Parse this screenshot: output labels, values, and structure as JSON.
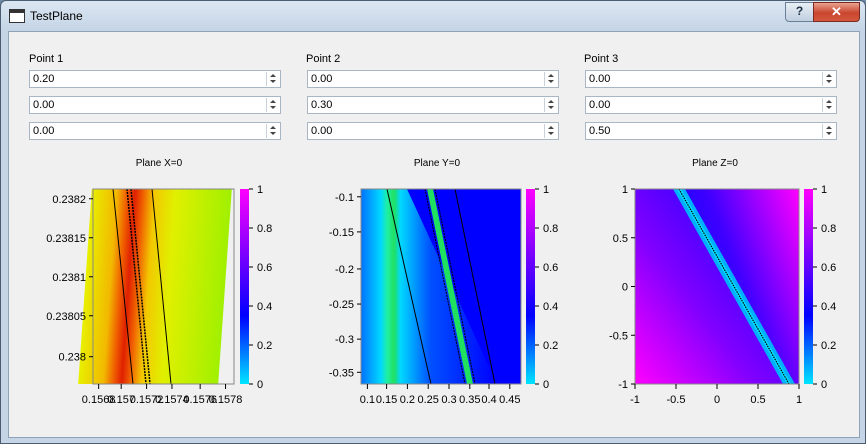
{
  "window": {
    "title": "TestPlane",
    "help": "?",
    "close": "✕"
  },
  "points": [
    {
      "label": "Point 1",
      "values": [
        "0.20",
        "0.00",
        "0.00"
      ]
    },
    {
      "label": "Point 2",
      "values": [
        "0.00",
        "0.30",
        "0.00"
      ]
    },
    {
      "label": "Point 3",
      "values": [
        "0.00",
        "0.00",
        "0.50"
      ]
    }
  ],
  "colorbar": {
    "ticks": [
      "0",
      "0.2",
      "0.4",
      "0.6",
      "0.8",
      "1"
    ],
    "colors": [
      "#00e5ff",
      "#0000ff",
      "#ff00ff"
    ]
  },
  "chart_data": [
    {
      "type": "heatmap",
      "title": "Plane X=0",
      "x_ticks": [
        "0.1568",
        "0.157",
        "0.1572",
        "0.1574",
        "0.1576",
        "0.1578"
      ],
      "y_ticks": [
        "0.2382",
        "0.23815",
        "0.2381",
        "0.23805",
        "0.238"
      ]
    },
    {
      "type": "heatmap",
      "title": "Plane Y=0",
      "x_ticks": [
        "0.1",
        "0.15",
        "0.2",
        "0.25",
        "0.3",
        "0.35",
        "0.4",
        "0.45"
      ],
      "y_ticks": [
        "-0.1",
        "-0.15",
        "-0.2",
        "-0.25",
        "-0.3",
        "-0.35"
      ]
    },
    {
      "type": "heatmap",
      "title": "Plane Z=0",
      "x_ticks": [
        "-1",
        "-0.5",
        "0",
        "0.5",
        "1"
      ],
      "y_ticks": [
        "1",
        "0.5",
        "0",
        "-0.5",
        "-1"
      ]
    }
  ]
}
